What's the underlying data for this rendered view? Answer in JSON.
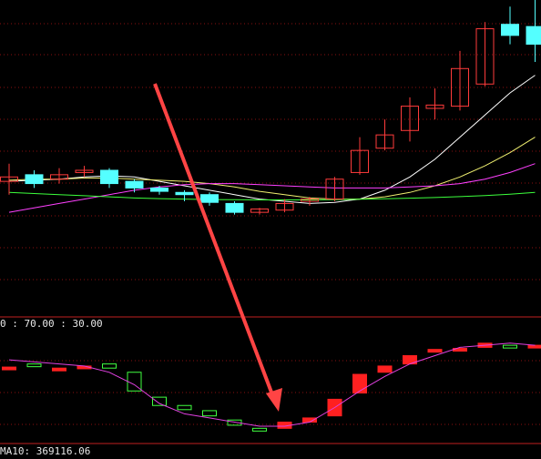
{
  "colors": {
    "background": "#000000",
    "grid": "#8a1010",
    "up": "#ff3b3b",
    "down": "#54ffff",
    "ma5": "#ffffff",
    "ma10": "#f0f070",
    "ma20": "#ff40ff",
    "ma60": "#3cff3c",
    "osc_line": "#e040e0",
    "osc_up": "#ff2020",
    "osc_down": "#40ff40",
    "arrow": "#ff4444",
    "panel_border": "#c02020"
  },
  "labels": {
    "indicator_levels": "0 : 70.00 : 30.00",
    "volume_ma": "MA10: 369116.06"
  },
  "chart_data": [
    {
      "type": "candlestick",
      "price_range": [
        0,
        100
      ],
      "grid": true,
      "candles": [
        {
          "o": 58,
          "h": 66,
          "l": 52,
          "c": 60
        },
        {
          "o": 61,
          "h": 63,
          "l": 55,
          "c": 57
        },
        {
          "o": 59,
          "h": 64,
          "l": 57,
          "c": 61
        },
        {
          "o": 62,
          "h": 65,
          "l": 60,
          "c": 63
        },
        {
          "o": 63,
          "h": 64,
          "l": 55,
          "c": 57
        },
        {
          "o": 58,
          "h": 59,
          "l": 53,
          "c": 55
        },
        {
          "o": 55,
          "h": 56,
          "l": 52,
          "c": 53.5
        },
        {
          "o": 53,
          "h": 54,
          "l": 49,
          "c": 52
        },
        {
          "o": 52,
          "h": 53,
          "l": 47,
          "c": 48.5
        },
        {
          "o": 48,
          "h": 49,
          "l": 43,
          "c": 44
        },
        {
          "o": 44,
          "h": 46,
          "l": 43,
          "c": 45.5
        },
        {
          "o": 45,
          "h": 50,
          "l": 44,
          "c": 48
        },
        {
          "o": 49,
          "h": 51,
          "l": 47,
          "c": 50
        },
        {
          "o": 50,
          "h": 60,
          "l": 49,
          "c": 59
        },
        {
          "o": 62,
          "h": 78,
          "l": 61,
          "c": 72
        },
        {
          "o": 73,
          "h": 86,
          "l": 72,
          "c": 79
        },
        {
          "o": 81,
          "h": 96,
          "l": 76,
          "c": 92
        },
        {
          "o": 91,
          "h": 100,
          "l": 86,
          "c": 92.5
        },
        {
          "o": 92,
          "h": 117,
          "l": 90,
          "c": 109
        },
        {
          "o": 102,
          "h": 130,
          "l": 101,
          "c": 127
        },
        {
          "o": 129,
          "h": 137,
          "l": 120,
          "c": 124
        },
        {
          "o": 128,
          "h": 140,
          "l": 112,
          "c": 120
        }
      ],
      "moving_averages": [
        {
          "name": "MA5",
          "values": [
            58,
            58.5,
            59,
            60,
            60.5,
            60,
            58,
            56,
            54,
            52,
            50,
            49,
            48,
            48.5,
            50,
            54,
            60,
            68,
            78,
            88,
            98,
            106
          ]
        },
        {
          "name": "MA10",
          "values": [
            58.5,
            59,
            59,
            59.5,
            59.5,
            59,
            58.5,
            58,
            57,
            55.5,
            53.5,
            52,
            50.5,
            50,
            50,
            51,
            53,
            56,
            60,
            65,
            71,
            78
          ]
        },
        {
          "name": "MA20",
          "values": [
            44,
            46,
            48,
            50,
            52,
            54,
            55.5,
            56.5,
            57,
            57,
            56.5,
            56,
            55.5,
            55,
            55,
            55,
            55.5,
            56,
            57,
            59,
            62,
            66
          ]
        },
        {
          "name": "MA60",
          "values": [
            53,
            52.5,
            52,
            51.5,
            51,
            50.5,
            50.2,
            50,
            49.8,
            49.7,
            49.6,
            49.6,
            49.6,
            49.7,
            49.9,
            50.1,
            50.4,
            50.7,
            51.1,
            51.6,
            52.2,
            53
          ]
        }
      ]
    },
    {
      "type": "indicator",
      "y_range": [
        0,
        100
      ],
      "levels": [
        70,
        30
      ],
      "line": [
        78,
        76,
        74,
        72,
        66,
        54,
        36,
        26,
        22,
        18,
        14,
        14,
        18,
        32,
        48,
        62,
        74,
        82,
        90,
        92,
        94,
        92
      ],
      "bars": [
        {
          "o": 70,
          "c": 71,
          "dir": "up"
        },
        {
          "o": 74,
          "c": 72,
          "dir": "down"
        },
        {
          "o": 70,
          "c": 69,
          "dir": "up"
        },
        {
          "o": 72,
          "c": 71,
          "dir": "up"
        },
        {
          "o": 74,
          "c": 70,
          "dir": "down"
        },
        {
          "o": 66,
          "c": 48,
          "dir": "down"
        },
        {
          "o": 42,
          "c": 34,
          "dir": "down"
        },
        {
          "o": 34,
          "c": 30,
          "dir": "down"
        },
        {
          "o": 29,
          "c": 24,
          "dir": "down"
        },
        {
          "o": 20,
          "c": 15,
          "dir": "down"
        },
        {
          "o": 12,
          "c": 10,
          "dir": "down"
        },
        {
          "o": 12,
          "c": 18,
          "dir": "up"
        },
        {
          "o": 18,
          "c": 22,
          "dir": "up"
        },
        {
          "o": 24,
          "c": 40,
          "dir": "up"
        },
        {
          "o": 46,
          "c": 64,
          "dir": "up"
        },
        {
          "o": 66,
          "c": 72,
          "dir": "up"
        },
        {
          "o": 74,
          "c": 82,
          "dir": "up"
        },
        {
          "o": 86,
          "c": 88,
          "dir": "up"
        },
        {
          "o": 88,
          "c": 89,
          "dir": "up"
        },
        {
          "o": 90,
          "c": 94,
          "dir": "up"
        },
        {
          "o": 92,
          "c": 91,
          "dir": "down"
        },
        {
          "o": 92,
          "c": 91,
          "dir": "up"
        }
      ]
    }
  ]
}
